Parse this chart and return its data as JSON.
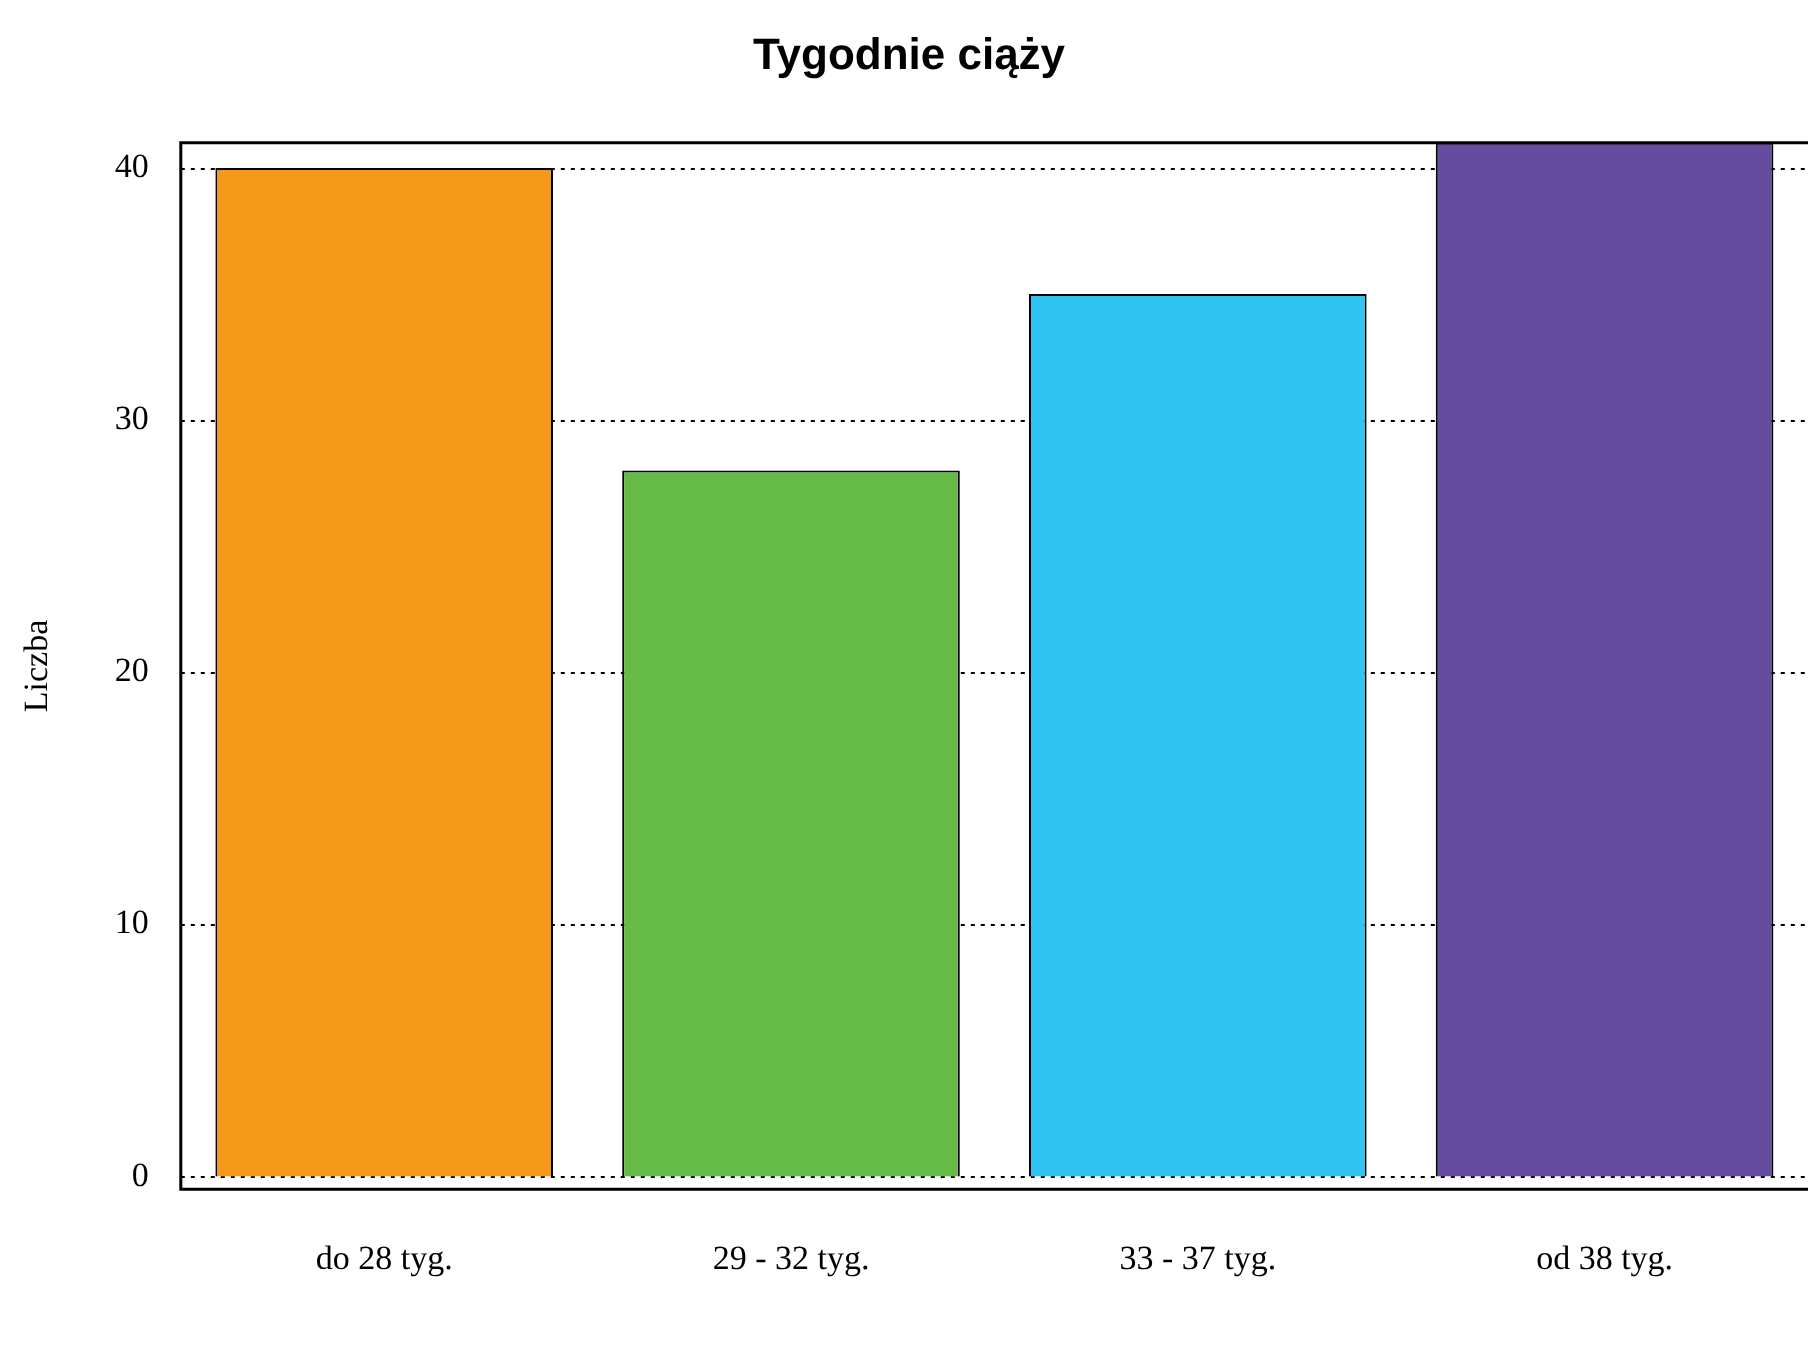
{
  "chart_data": {
    "type": "bar",
    "title": "Tygodnie ciąży",
    "ylabel": "Liczba",
    "categories": [
      "do 28 tyg.",
      "29 - 32 tyg.",
      "33 - 37 tyg.",
      "od 38 tyg."
    ],
    "values": [
      40,
      28,
      35,
      41
    ],
    "colors": [
      "#f4991a",
      "#66bb47",
      "#30c4f2",
      "#664c9f"
    ],
    "ylim": [
      -0.5,
      41
    ],
    "yticks": [
      0,
      10,
      20,
      30,
      40
    ],
    "grid": "y",
    "legend": false
  }
}
